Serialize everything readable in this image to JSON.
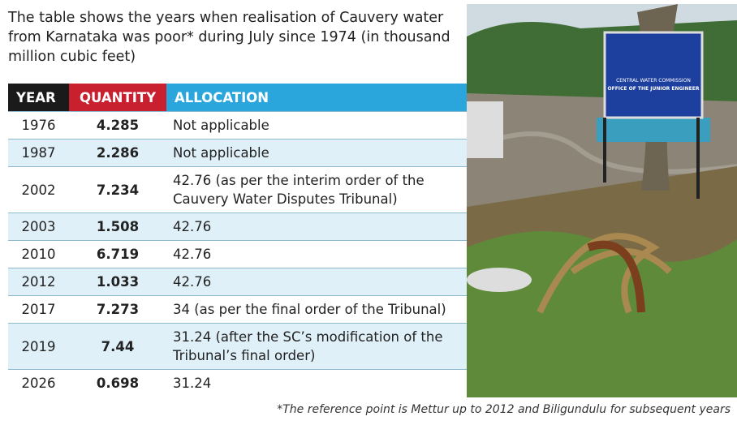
{
  "header": {
    "title": "The table shows the years when realisation of Cauvery water from Karnataka was poor* during July since 1974 (in thousand million cubic feet)"
  },
  "table": {
    "columns": [
      "YEAR",
      "QUANTITY",
      "ALLOCATION"
    ],
    "rows": [
      [
        "1976",
        "4.285",
        "Not applicable"
      ],
      [
        "1987",
        "2.286",
        "Not applicable"
      ],
      [
        "2002",
        "7.234",
        "42.76 (as per the interim order of the Cauvery Water Disputes Tribunal)"
      ],
      [
        "2003",
        "1.508",
        "42.76"
      ],
      [
        "2010",
        "6.719",
        "42.76"
      ],
      [
        "2012",
        "1.033",
        "42.76"
      ],
      [
        "2017",
        "7.273",
        "34 (as per the final order of the Tribunal)"
      ],
      [
        "2019",
        "7.44",
        "31.24 (after the SC’s modification of the Tribunal’s final order)"
      ],
      [
        "2026",
        "0.698",
        "31.24"
      ]
    ]
  },
  "photo": {
    "sign": [
      "CENTRAL WATER COMMISSION",
      "OFFICE OF THE JUNIOR ENGINEER"
    ]
  },
  "footnote": "*The reference point is Mettur up to 2012 and Biligundulu for subsequent years"
}
